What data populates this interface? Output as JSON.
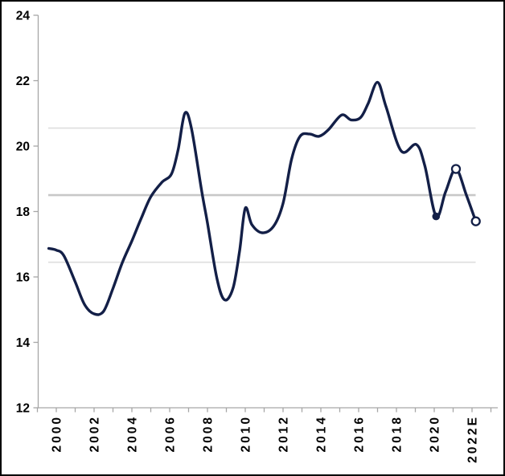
{
  "figure": {
    "background": "#ffffff",
    "border_color": "#000000"
  },
  "chart_data": {
    "type": "line",
    "title": "",
    "x_axis": {
      "tick_labels": [
        {
          "year": 2000,
          "label": "2000"
        },
        {
          "year": 2002,
          "label": "2002"
        },
        {
          "year": 2004,
          "label": "2004"
        },
        {
          "year": 2006,
          "label": "2006"
        },
        {
          "year": 2008,
          "label": "2008"
        },
        {
          "year": 2010,
          "label": "2010"
        },
        {
          "year": 2012,
          "label": "2012"
        },
        {
          "year": 2014,
          "label": "2014"
        },
        {
          "year": 2016,
          "label": "2016"
        },
        {
          "year": 2018,
          "label": "2018"
        },
        {
          "year": 2020,
          "label": "2020"
        },
        {
          "year": 2022,
          "label": "2022E"
        }
      ],
      "minor_tick_start": 1999,
      "minor_tick_end": 2023,
      "range": [
        1999,
        2023.4
      ]
    },
    "y_axis": {
      "ticks": [
        12,
        14,
        16,
        18,
        20,
        22,
        24
      ],
      "range": [
        12,
        24
      ]
    },
    "reference_lines": [
      {
        "value": 20.55,
        "style": "thin"
      },
      {
        "value": 18.5,
        "style": "thick"
      },
      {
        "value": 16.45,
        "style": "thin"
      }
    ],
    "series": [
      {
        "name": "main-line",
        "points": [
          [
            1999.6,
            16.87
          ],
          [
            2000.0,
            16.82
          ],
          [
            2000.4,
            16.65
          ],
          [
            2001.0,
            15.85
          ],
          [
            2001.5,
            15.15
          ],
          [
            2002.0,
            14.87
          ],
          [
            2002.5,
            14.95
          ],
          [
            2003.0,
            15.65
          ],
          [
            2003.5,
            16.45
          ],
          [
            2004.0,
            17.1
          ],
          [
            2004.5,
            17.8
          ],
          [
            2005.0,
            18.45
          ],
          [
            2005.6,
            18.9
          ],
          [
            2006.1,
            19.15
          ],
          [
            2006.45,
            19.9
          ],
          [
            2006.8,
            21.0
          ],
          [
            2007.15,
            20.55
          ],
          [
            2007.7,
            18.6
          ],
          [
            2008.0,
            17.65
          ],
          [
            2008.5,
            15.95
          ],
          [
            2008.9,
            15.3
          ],
          [
            2009.35,
            15.65
          ],
          [
            2009.7,
            16.8
          ],
          [
            2010.0,
            18.1
          ],
          [
            2010.35,
            17.6
          ],
          [
            2010.9,
            17.35
          ],
          [
            2011.5,
            17.55
          ],
          [
            2012.0,
            18.25
          ],
          [
            2012.45,
            19.6
          ],
          [
            2012.9,
            20.3
          ],
          [
            2013.4,
            20.37
          ],
          [
            2013.9,
            20.3
          ],
          [
            2014.4,
            20.5
          ],
          [
            2015.1,
            20.95
          ],
          [
            2015.6,
            20.8
          ],
          [
            2016.1,
            20.87
          ],
          [
            2016.5,
            21.3
          ],
          [
            2017.0,
            21.95
          ],
          [
            2017.45,
            21.2
          ],
          [
            2018.25,
            19.85
          ],
          [
            2019.05,
            20.05
          ],
          [
            2019.5,
            19.4
          ],
          [
            2020.1,
            17.85
          ],
          [
            2020.6,
            18.6
          ],
          [
            2021.15,
            19.3
          ],
          [
            2021.7,
            18.5
          ],
          [
            2022.2,
            17.7
          ]
        ]
      }
    ],
    "markers": [
      {
        "x": 2020.1,
        "y": 17.85,
        "type": "filled"
      },
      {
        "x": 2021.15,
        "y": 19.3,
        "type": "open"
      },
      {
        "x": 2022.2,
        "y": 17.7,
        "type": "open"
      }
    ],
    "legend": null
  },
  "style": {
    "line_color": "#131f47",
    "grid_thin_color": "#dedede",
    "grid_thick_color": "#c8c8c8",
    "axis_color": "#a6a6a6",
    "label_color": "#000000"
  }
}
